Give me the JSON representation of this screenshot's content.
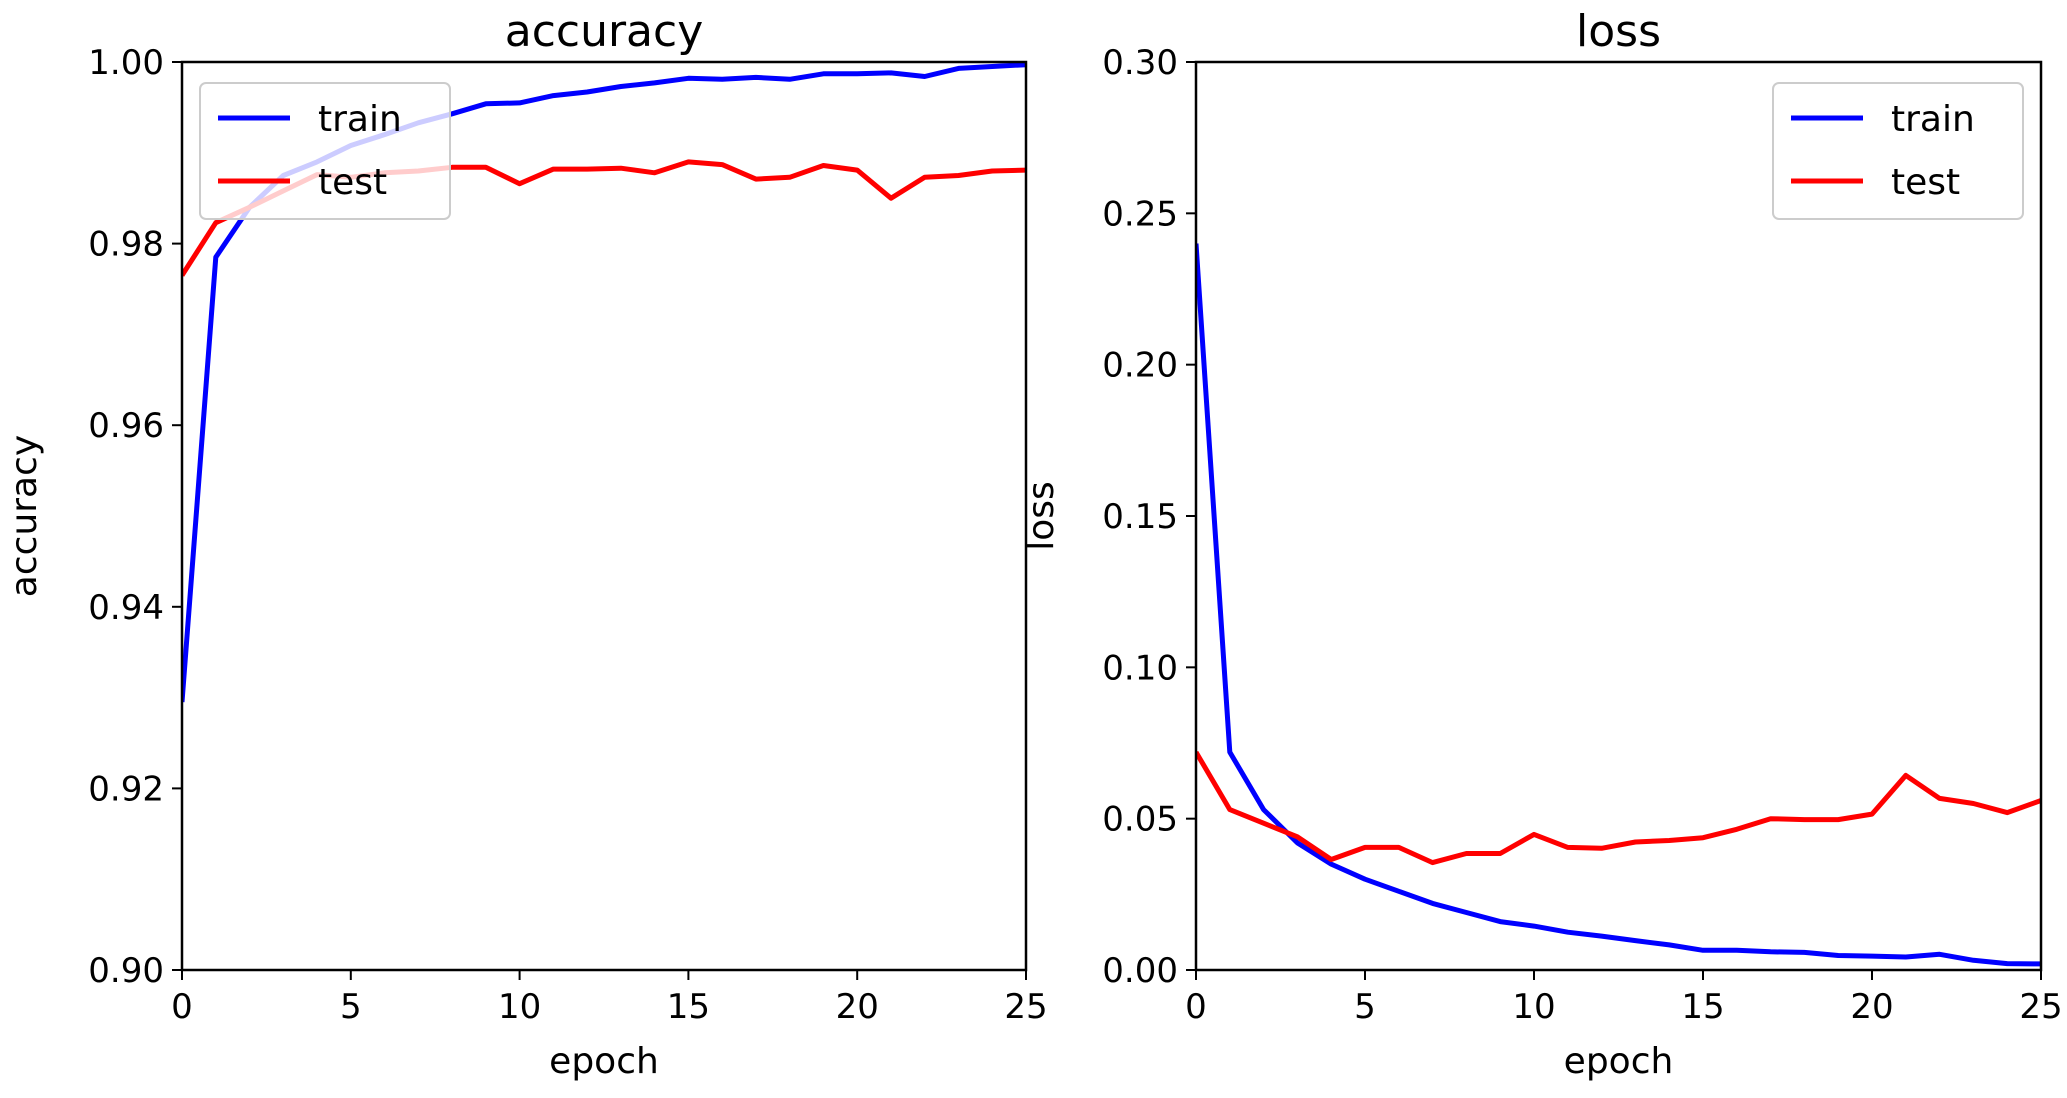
{
  "chart_data": [
    {
      "type": "line",
      "title": "accuracy",
      "xlabel": "epoch",
      "ylabel": "accuracy",
      "xlim": [
        0,
        25
      ],
      "ylim": [
        0.9,
        1.0
      ],
      "xticks": [
        0,
        5,
        10,
        15,
        20,
        25
      ],
      "xtick_labels": [
        "0",
        "5",
        "10",
        "15",
        "20",
        "25"
      ],
      "yticks": [
        0.9,
        0.92,
        0.94,
        0.96,
        0.98,
        1.0
      ],
      "ytick_labels": [
        "0.90",
        "0.92",
        "0.94",
        "0.96",
        "0.98",
        "1.00"
      ],
      "grid": false,
      "legend_position": "upper-left",
      "x": [
        0,
        1,
        2,
        3,
        4,
        5,
        6,
        7,
        8,
        9,
        10,
        11,
        12,
        13,
        14,
        15,
        16,
        17,
        18,
        19,
        20,
        21,
        22,
        23,
        24,
        25
      ],
      "series": [
        {
          "name": "train",
          "color": "#0000ff",
          "values": [
            0.9295,
            0.9785,
            0.984,
            0.9875,
            0.989,
            0.9908,
            0.992,
            0.9933,
            0.9943,
            0.9954,
            0.9955,
            0.9963,
            0.9967,
            0.9973,
            0.9977,
            0.9982,
            0.9981,
            0.9983,
            0.9981,
            0.9987,
            0.9987,
            0.9988,
            0.9984,
            0.9993,
            0.9995,
            0.9997
          ]
        },
        {
          "name": "test",
          "color": "#ff0000",
          "values": [
            0.9765,
            0.9823,
            0.984,
            0.9858,
            0.9876,
            0.9873,
            0.9878,
            0.988,
            0.9884,
            0.9884,
            0.9866,
            0.9882,
            0.9882,
            0.9883,
            0.9878,
            0.989,
            0.9887,
            0.9871,
            0.9873,
            0.9886,
            0.9881,
            0.985,
            0.9873,
            0.9875,
            0.988,
            0.9881
          ]
        }
      ]
    },
    {
      "type": "line",
      "title": "loss",
      "xlabel": "epoch",
      "ylabel": "loss",
      "xlim": [
        0,
        25
      ],
      "ylim": [
        0.0,
        0.3
      ],
      "xticks": [
        0,
        5,
        10,
        15,
        20,
        25
      ],
      "xtick_labels": [
        "0",
        "5",
        "10",
        "15",
        "20",
        "25"
      ],
      "yticks": [
        0.0,
        0.05,
        0.1,
        0.15,
        0.2,
        0.25,
        0.3
      ],
      "ytick_labels": [
        "0.00",
        "0.05",
        "0.10",
        "0.15",
        "0.20",
        "0.25",
        "0.30"
      ],
      "grid": false,
      "legend_position": "upper-right",
      "x": [
        0,
        1,
        2,
        3,
        4,
        5,
        6,
        7,
        8,
        9,
        10,
        11,
        12,
        13,
        14,
        15,
        16,
        17,
        18,
        19,
        20,
        21,
        22,
        23,
        24,
        25
      ],
      "series": [
        {
          "name": "train",
          "color": "#0000ff",
          "values": [
            0.24,
            0.072,
            0.053,
            0.042,
            0.035,
            0.03,
            0.026,
            0.022,
            0.019,
            0.016,
            0.0145,
            0.0125,
            0.0112,
            0.0097,
            0.0083,
            0.0065,
            0.0065,
            0.006,
            0.0058,
            0.0048,
            0.0046,
            0.0043,
            0.0052,
            0.0032,
            0.0021,
            0.002
          ]
        },
        {
          "name": "test",
          "color": "#ff0000",
          "values": [
            0.072,
            0.053,
            0.0485,
            0.044,
            0.0365,
            0.0405,
            0.0405,
            0.0355,
            0.0385,
            0.0385,
            0.0448,
            0.0405,
            0.0402,
            0.0423,
            0.0428,
            0.0437,
            0.0465,
            0.05,
            0.0497,
            0.0497,
            0.0515,
            0.0643,
            0.0567,
            0.055,
            0.052,
            0.056
          ]
        }
      ]
    }
  ]
}
